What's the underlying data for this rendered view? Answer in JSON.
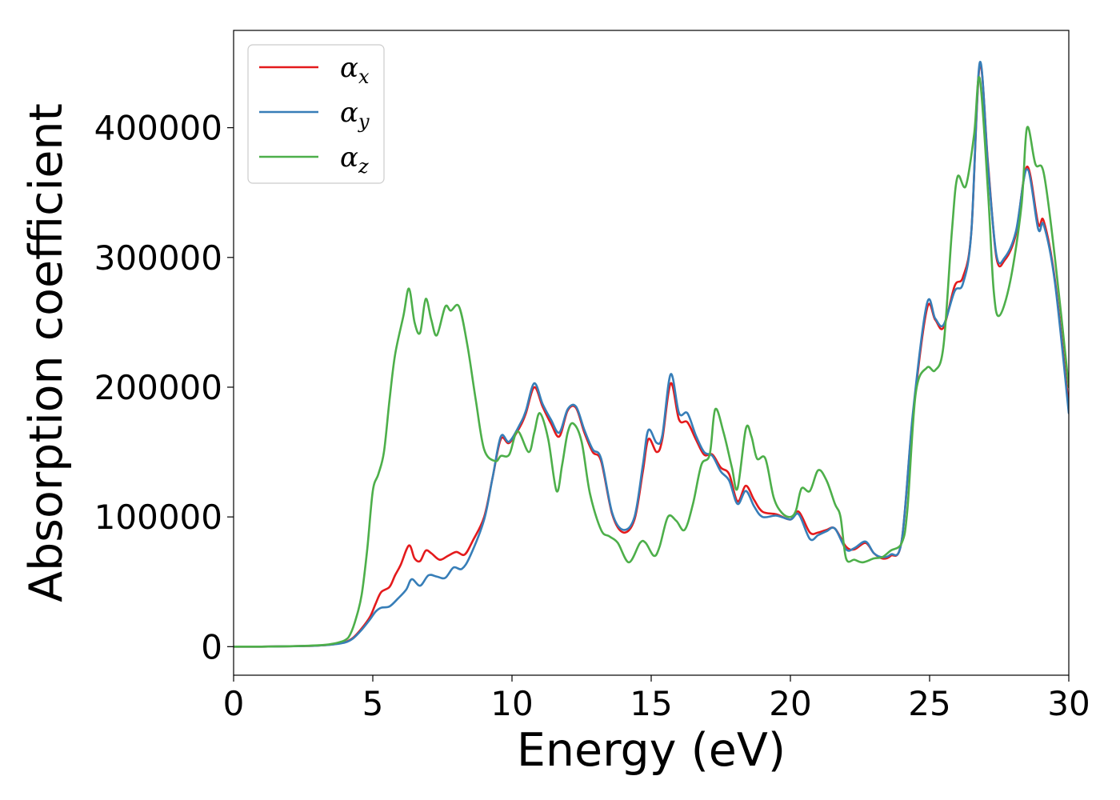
{
  "chart_data": {
    "type": "line",
    "title": "",
    "xlabel": "Energy (eV)",
    "ylabel": "Absorption coefficient",
    "xlim": [
      0,
      30
    ],
    "ylim": [
      -22000,
      475000
    ],
    "xticks": [
      "0",
      "5",
      "10",
      "15",
      "20",
      "25",
      "30"
    ],
    "xtick_values": [
      0,
      5,
      10,
      15,
      20,
      25,
      30
    ],
    "yticks": [
      "0",
      "100000",
      "200000",
      "300000",
      "400000"
    ],
    "ytick_values": [
      0,
      100000,
      200000,
      300000,
      400000
    ],
    "grid": false,
    "legend_position": "top-left",
    "series": [
      {
        "name": "α",
        "subscript": "x",
        "color": "#e41a1c",
        "points": [
          [
            0,
            0
          ],
          [
            1,
            0
          ],
          [
            2,
            300
          ],
          [
            3,
            800
          ],
          [
            3.5,
            1600
          ],
          [
            4,
            3500
          ],
          [
            4.3,
            7000
          ],
          [
            4.6,
            14000
          ],
          [
            4.9,
            23000
          ],
          [
            5.1,
            33000
          ],
          [
            5.3,
            42000
          ],
          [
            5.6,
            46000
          ],
          [
            5.8,
            55000
          ],
          [
            6.0,
            63000
          ],
          [
            6.3,
            78000
          ],
          [
            6.5,
            68000
          ],
          [
            6.7,
            66000
          ],
          [
            6.9,
            74000
          ],
          [
            7.1,
            72000
          ],
          [
            7.4,
            67000
          ],
          [
            7.7,
            70000
          ],
          [
            8.0,
            73000
          ],
          [
            8.3,
            71000
          ],
          [
            8.6,
            82000
          ],
          [
            9.0,
            100000
          ],
          [
            9.3,
            130000
          ],
          [
            9.6,
            160000
          ],
          [
            9.9,
            157000
          ],
          [
            10.3,
            170000
          ],
          [
            10.5,
            180000
          ],
          [
            10.8,
            200000
          ],
          [
            11.1,
            185000
          ],
          [
            11.4,
            172000
          ],
          [
            11.7,
            162000
          ],
          [
            12.0,
            182000
          ],
          [
            12.3,
            184000
          ],
          [
            12.6,
            165000
          ],
          [
            12.9,
            150000
          ],
          [
            13.2,
            143000
          ],
          [
            13.6,
            102000
          ],
          [
            14.0,
            88000
          ],
          [
            14.4,
            98000
          ],
          [
            14.7,
            135000
          ],
          [
            14.9,
            160000
          ],
          [
            15.2,
            150000
          ],
          [
            15.4,
            160000
          ],
          [
            15.7,
            203000
          ],
          [
            16.0,
            175000
          ],
          [
            16.3,
            173000
          ],
          [
            16.6,
            160000
          ],
          [
            16.9,
            148000
          ],
          [
            17.2,
            148000
          ],
          [
            17.5,
            138000
          ],
          [
            17.8,
            133000
          ],
          [
            18.1,
            112000
          ],
          [
            18.4,
            124000
          ],
          [
            18.7,
            113000
          ],
          [
            19.0,
            104000
          ],
          [
            19.5,
            102000
          ],
          [
            20.0,
            98000
          ],
          [
            20.3,
            104000
          ],
          [
            20.7,
            88000
          ],
          [
            21.0,
            88000
          ],
          [
            21.3,
            90000
          ],
          [
            21.6,
            91000
          ],
          [
            22.0,
            77000
          ],
          [
            22.3,
            75000
          ],
          [
            22.7,
            80000
          ],
          [
            23.0,
            72000
          ],
          [
            23.3,
            68000
          ],
          [
            23.6,
            70000
          ],
          [
            24.0,
            82000
          ],
          [
            24.4,
            178000
          ],
          [
            24.9,
            260000
          ],
          [
            25.2,
            252000
          ],
          [
            25.5,
            246000
          ],
          [
            25.9,
            278000
          ],
          [
            26.2,
            285000
          ],
          [
            26.5,
            320000
          ],
          [
            26.8,
            448000
          ],
          [
            27.1,
            372000
          ],
          [
            27.4,
            300000
          ],
          [
            27.7,
            298000
          ],
          [
            28.1,
            318000
          ],
          [
            28.5,
            370000
          ],
          [
            28.9,
            326000
          ],
          [
            29.1,
            328000
          ],
          [
            29.5,
            283000
          ],
          [
            30.0,
            185000
          ]
        ]
      },
      {
        "name": "α",
        "subscript": "y",
        "color": "#377eb8",
        "points": [
          [
            0,
            0
          ],
          [
            1,
            0
          ],
          [
            2,
            300
          ],
          [
            3,
            800
          ],
          [
            3.5,
            1500
          ],
          [
            4,
            3200
          ],
          [
            4.3,
            6500
          ],
          [
            4.6,
            13000
          ],
          [
            4.9,
            21000
          ],
          [
            5.1,
            27000
          ],
          [
            5.3,
            30000
          ],
          [
            5.6,
            31000
          ],
          [
            5.9,
            37000
          ],
          [
            6.2,
            44000
          ],
          [
            6.4,
            52000
          ],
          [
            6.7,
            47000
          ],
          [
            7.0,
            55000
          ],
          [
            7.3,
            54000
          ],
          [
            7.6,
            53000
          ],
          [
            7.9,
            61000
          ],
          [
            8.2,
            60000
          ],
          [
            8.5,
            70000
          ],
          [
            9.0,
            98000
          ],
          [
            9.3,
            130000
          ],
          [
            9.6,
            162000
          ],
          [
            9.9,
            158000
          ],
          [
            10.3,
            172000
          ],
          [
            10.5,
            182000
          ],
          [
            10.8,
            203000
          ],
          [
            11.1,
            187000
          ],
          [
            11.4,
            175000
          ],
          [
            11.7,
            165000
          ],
          [
            12.0,
            183000
          ],
          [
            12.3,
            185000
          ],
          [
            12.6,
            167000
          ],
          [
            12.9,
            152000
          ],
          [
            13.2,
            145000
          ],
          [
            13.6,
            103000
          ],
          [
            14.0,
            90000
          ],
          [
            14.4,
            100000
          ],
          [
            14.7,
            140000
          ],
          [
            14.9,
            167000
          ],
          [
            15.2,
            157000
          ],
          [
            15.4,
            163000
          ],
          [
            15.7,
            210000
          ],
          [
            16.0,
            180000
          ],
          [
            16.3,
            180000
          ],
          [
            16.6,
            163000
          ],
          [
            16.9,
            150000
          ],
          [
            17.2,
            147000
          ],
          [
            17.5,
            135000
          ],
          [
            17.8,
            128000
          ],
          [
            18.1,
            110000
          ],
          [
            18.4,
            120000
          ],
          [
            18.7,
            108000
          ],
          [
            19.0,
            100000
          ],
          [
            19.5,
            101000
          ],
          [
            20.0,
            98000
          ],
          [
            20.3,
            102000
          ],
          [
            20.7,
            83000
          ],
          [
            21.0,
            86000
          ],
          [
            21.3,
            89000
          ],
          [
            21.6,
            91000
          ],
          [
            22.0,
            75000
          ],
          [
            22.3,
            76000
          ],
          [
            22.7,
            81000
          ],
          [
            23.0,
            72000
          ],
          [
            23.3,
            69000
          ],
          [
            23.6,
            71000
          ],
          [
            24.0,
            82000
          ],
          [
            24.4,
            180000
          ],
          [
            24.9,
            264000
          ],
          [
            25.2,
            253000
          ],
          [
            25.5,
            248000
          ],
          [
            25.9,
            274000
          ],
          [
            26.2,
            280000
          ],
          [
            26.5,
            320000
          ],
          [
            26.8,
            450000
          ],
          [
            27.1,
            370000
          ],
          [
            27.4,
            302000
          ],
          [
            27.7,
            300000
          ],
          [
            28.1,
            320000
          ],
          [
            28.5,
            368000
          ],
          [
            28.9,
            322000
          ],
          [
            29.1,
            325000
          ],
          [
            29.5,
            281000
          ],
          [
            30.0,
            180000
          ]
        ]
      },
      {
        "name": "α",
        "subscript": "z",
        "color": "#4daf4a",
        "points": [
          [
            0,
            0
          ],
          [
            1,
            0
          ],
          [
            2,
            300
          ],
          [
            3,
            1000
          ],
          [
            3.5,
            2000
          ],
          [
            4,
            5000
          ],
          [
            4.2,
            10000
          ],
          [
            4.4,
            22000
          ],
          [
            4.6,
            40000
          ],
          [
            4.8,
            75000
          ],
          [
            5.0,
            120000
          ],
          [
            5.2,
            133000
          ],
          [
            5.4,
            150000
          ],
          [
            5.6,
            190000
          ],
          [
            5.8,
            225000
          ],
          [
            6.1,
            255000
          ],
          [
            6.3,
            276000
          ],
          [
            6.5,
            250000
          ],
          [
            6.7,
            242000
          ],
          [
            6.9,
            268000
          ],
          [
            7.1,
            252000
          ],
          [
            7.3,
            240000
          ],
          [
            7.6,
            262000
          ],
          [
            7.8,
            259000
          ],
          [
            8.1,
            262000
          ],
          [
            8.4,
            232000
          ],
          [
            8.7,
            190000
          ],
          [
            9.0,
            152000
          ],
          [
            9.4,
            143000
          ],
          [
            9.6,
            147000
          ],
          [
            9.9,
            148000
          ],
          [
            10.2,
            166000
          ],
          [
            10.6,
            150000
          ],
          [
            10.8,
            165000
          ],
          [
            11.0,
            180000
          ],
          [
            11.3,
            160000
          ],
          [
            11.6,
            120000
          ],
          [
            11.8,
            140000
          ],
          [
            12.0,
            165000
          ],
          [
            12.2,
            172000
          ],
          [
            12.5,
            158000
          ],
          [
            12.8,
            118000
          ],
          [
            13.2,
            90000
          ],
          [
            13.5,
            85000
          ],
          [
            13.8,
            80000
          ],
          [
            14.2,
            65000
          ],
          [
            14.6,
            80000
          ],
          [
            14.8,
            80000
          ],
          [
            15.1,
            70000
          ],
          [
            15.3,
            77000
          ],
          [
            15.6,
            100000
          ],
          [
            15.9,
            97000
          ],
          [
            16.2,
            90000
          ],
          [
            16.5,
            110000
          ],
          [
            16.8,
            140000
          ],
          [
            17.1,
            148000
          ],
          [
            17.3,
            183000
          ],
          [
            17.6,
            165000
          ],
          [
            17.9,
            138000
          ],
          [
            18.1,
            122000
          ],
          [
            18.4,
            168000
          ],
          [
            18.6,
            162000
          ],
          [
            18.8,
            145000
          ],
          [
            19.1,
            145000
          ],
          [
            19.4,
            115000
          ],
          [
            19.7,
            103000
          ],
          [
            20.0,
            100000
          ],
          [
            20.2,
            105000
          ],
          [
            20.4,
            122000
          ],
          [
            20.7,
            120000
          ],
          [
            21.0,
            136000
          ],
          [
            21.3,
            128000
          ],
          [
            21.6,
            110000
          ],
          [
            21.8,
            100000
          ],
          [
            22.0,
            68000
          ],
          [
            22.3,
            67000
          ],
          [
            22.6,
            65000
          ],
          [
            23.0,
            68000
          ],
          [
            23.3,
            69000
          ],
          [
            23.6,
            74000
          ],
          [
            24.0,
            80000
          ],
          [
            24.2,
            105000
          ],
          [
            24.5,
            195000
          ],
          [
            24.9,
            215000
          ],
          [
            25.2,
            213000
          ],
          [
            25.5,
            232000
          ],
          [
            25.8,
            320000
          ],
          [
            26.0,
            362000
          ],
          [
            26.3,
            355000
          ],
          [
            26.6,
            395000
          ],
          [
            26.8,
            438000
          ],
          [
            27.1,
            350000
          ],
          [
            27.3,
            275000
          ],
          [
            27.5,
            255000
          ],
          [
            27.9,
            282000
          ],
          [
            28.3,
            340000
          ],
          [
            28.5,
            400000
          ],
          [
            28.8,
            372000
          ],
          [
            29.1,
            365000
          ],
          [
            29.5,
            300000
          ],
          [
            30.0,
            200000
          ]
        ]
      }
    ]
  }
}
